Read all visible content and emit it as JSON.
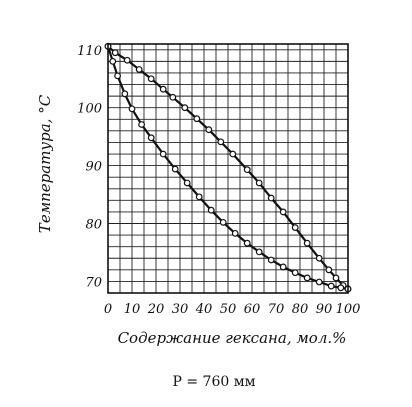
{
  "chart_data": {
    "type": "line",
    "title": "",
    "xlabel": "Содержание гексана, мол.%",
    "ylabel": "Температура, °С",
    "caption": "P = 760 мм",
    "xlim": [
      0,
      100
    ],
    "ylim": [
      68,
      111
    ],
    "xticks": [
      0,
      10,
      20,
      30,
      40,
      50,
      60,
      70,
      80,
      90,
      100
    ],
    "yticks": [
      70,
      80,
      90,
      100,
      110
    ],
    "grid": true,
    "legend": "none",
    "series": [
      {
        "id": "upper",
        "points": [
          [
            0,
            110.6
          ],
          [
            3,
            109.5
          ],
          [
            8,
            108.2
          ],
          [
            13,
            106.6
          ],
          [
            18,
            105.0
          ],
          [
            23,
            103.2
          ],
          [
            27,
            101.8
          ],
          [
            32,
            100.0
          ],
          [
            37,
            98.1
          ],
          [
            42,
            96.2
          ],
          [
            47,
            94.1
          ],
          [
            52,
            92.0
          ],
          [
            58,
            89.3
          ],
          [
            63,
            87.0
          ],
          [
            68,
            84.4
          ],
          [
            73,
            82.0
          ],
          [
            78,
            79.3
          ],
          [
            83,
            76.6
          ],
          [
            88,
            74.0
          ],
          [
            92,
            72.0
          ],
          [
            95,
            70.6
          ],
          [
            98,
            69.3
          ],
          [
            100,
            68.7
          ]
        ]
      },
      {
        "id": "lower",
        "points": [
          [
            0,
            110.6
          ],
          [
            2,
            108.0
          ],
          [
            4,
            105.5
          ],
          [
            7,
            102.4
          ],
          [
            10,
            99.8
          ],
          [
            14,
            97.1
          ],
          [
            18,
            94.8
          ],
          [
            23,
            92.0
          ],
          [
            28,
            89.4
          ],
          [
            33,
            87.0
          ],
          [
            38,
            84.6
          ],
          [
            43,
            82.3
          ],
          [
            48,
            80.2
          ],
          [
            53,
            78.3
          ],
          [
            58,
            76.6
          ],
          [
            63,
            75.1
          ],
          [
            68,
            73.7
          ],
          [
            73,
            72.5
          ],
          [
            78,
            71.5
          ],
          [
            83,
            70.6
          ],
          [
            88,
            69.9
          ],
          [
            93,
            69.2
          ],
          [
            97,
            68.9
          ],
          [
            100,
            68.7
          ]
        ]
      }
    ]
  }
}
